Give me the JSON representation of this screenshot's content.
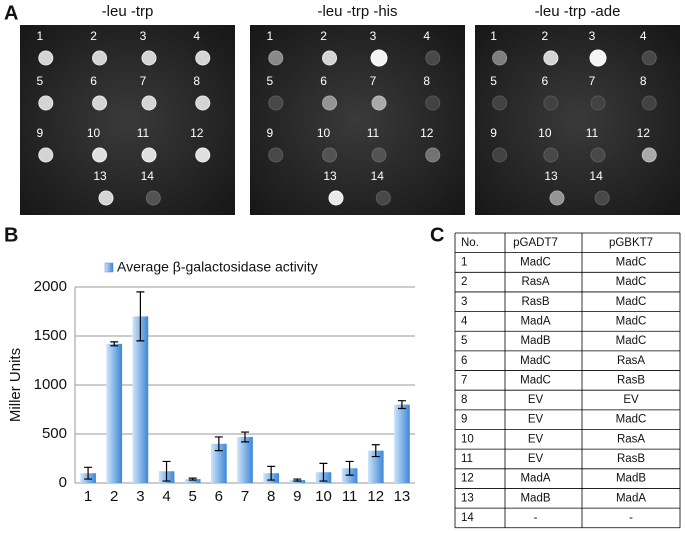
{
  "panel_labels": [
    "A",
    "B",
    "C"
  ],
  "plates": [
    {
      "title": "-leu -trp",
      "labels": [
        "1",
        "2",
        "3",
        "4",
        "5",
        "6",
        "7",
        "8",
        "9",
        "10",
        "11",
        "12",
        "13",
        "14"
      ]
    },
    {
      "title": "-leu -trp -his",
      "labels": [
        "1",
        "2",
        "3",
        "4",
        "5",
        "6",
        "7",
        "8",
        "9",
        "10",
        "11",
        "12",
        "13",
        "14"
      ]
    },
    {
      "title": "-leu -trp -ade",
      "labels": [
        "1",
        "2",
        "3",
        "4",
        "5",
        "6",
        "7",
        "8",
        "9",
        "10",
        "11",
        "12",
        "13",
        "14"
      ]
    }
  ],
  "chart_data": {
    "type": "bar",
    "ylabel": "Miller Units",
    "categories": [
      "1",
      "2",
      "3",
      "4",
      "5",
      "6",
      "7",
      "8",
      "9",
      "10",
      "11",
      "12",
      "13"
    ],
    "series": [
      {
        "name": "Average β-galactosidase activity",
        "color": "#4a90d9",
        "values": [
          100,
          1420,
          1700,
          120,
          40,
          400,
          470,
          100,
          30,
          110,
          150,
          330,
          800
        ],
        "errors": [
          60,
          20,
          250,
          100,
          10,
          70,
          50,
          70,
          10,
          90,
          70,
          60,
          40
        ]
      }
    ],
    "ylim": [
      0,
      2000
    ],
    "yticks": [
      0,
      500,
      1000,
      1500,
      2000
    ],
    "grid": true,
    "legend": "top"
  },
  "table": {
    "header": [
      "No.",
      "pGADT7",
      "pGBKT7"
    ],
    "rows": [
      [
        "1",
        "MadC",
        "MadC"
      ],
      [
        "2",
        "RasA",
        "MadC"
      ],
      [
        "3",
        "RasB",
        "MadC"
      ],
      [
        "4",
        "MadA",
        "MadC"
      ],
      [
        "5",
        "MadB",
        "MadC"
      ],
      [
        "6",
        "MadC",
        "RasA"
      ],
      [
        "7",
        "MadC",
        "RasB"
      ],
      [
        "8",
        "EV",
        "EV"
      ],
      [
        "9",
        "EV",
        "MadC"
      ],
      [
        "10",
        "EV",
        "RasA"
      ],
      [
        "11",
        "EV",
        "RasB"
      ],
      [
        "12",
        "MadA",
        "MadB"
      ],
      [
        "13",
        "MadB",
        "MadA"
      ],
      [
        "14",
        "-",
        "-"
      ]
    ]
  }
}
